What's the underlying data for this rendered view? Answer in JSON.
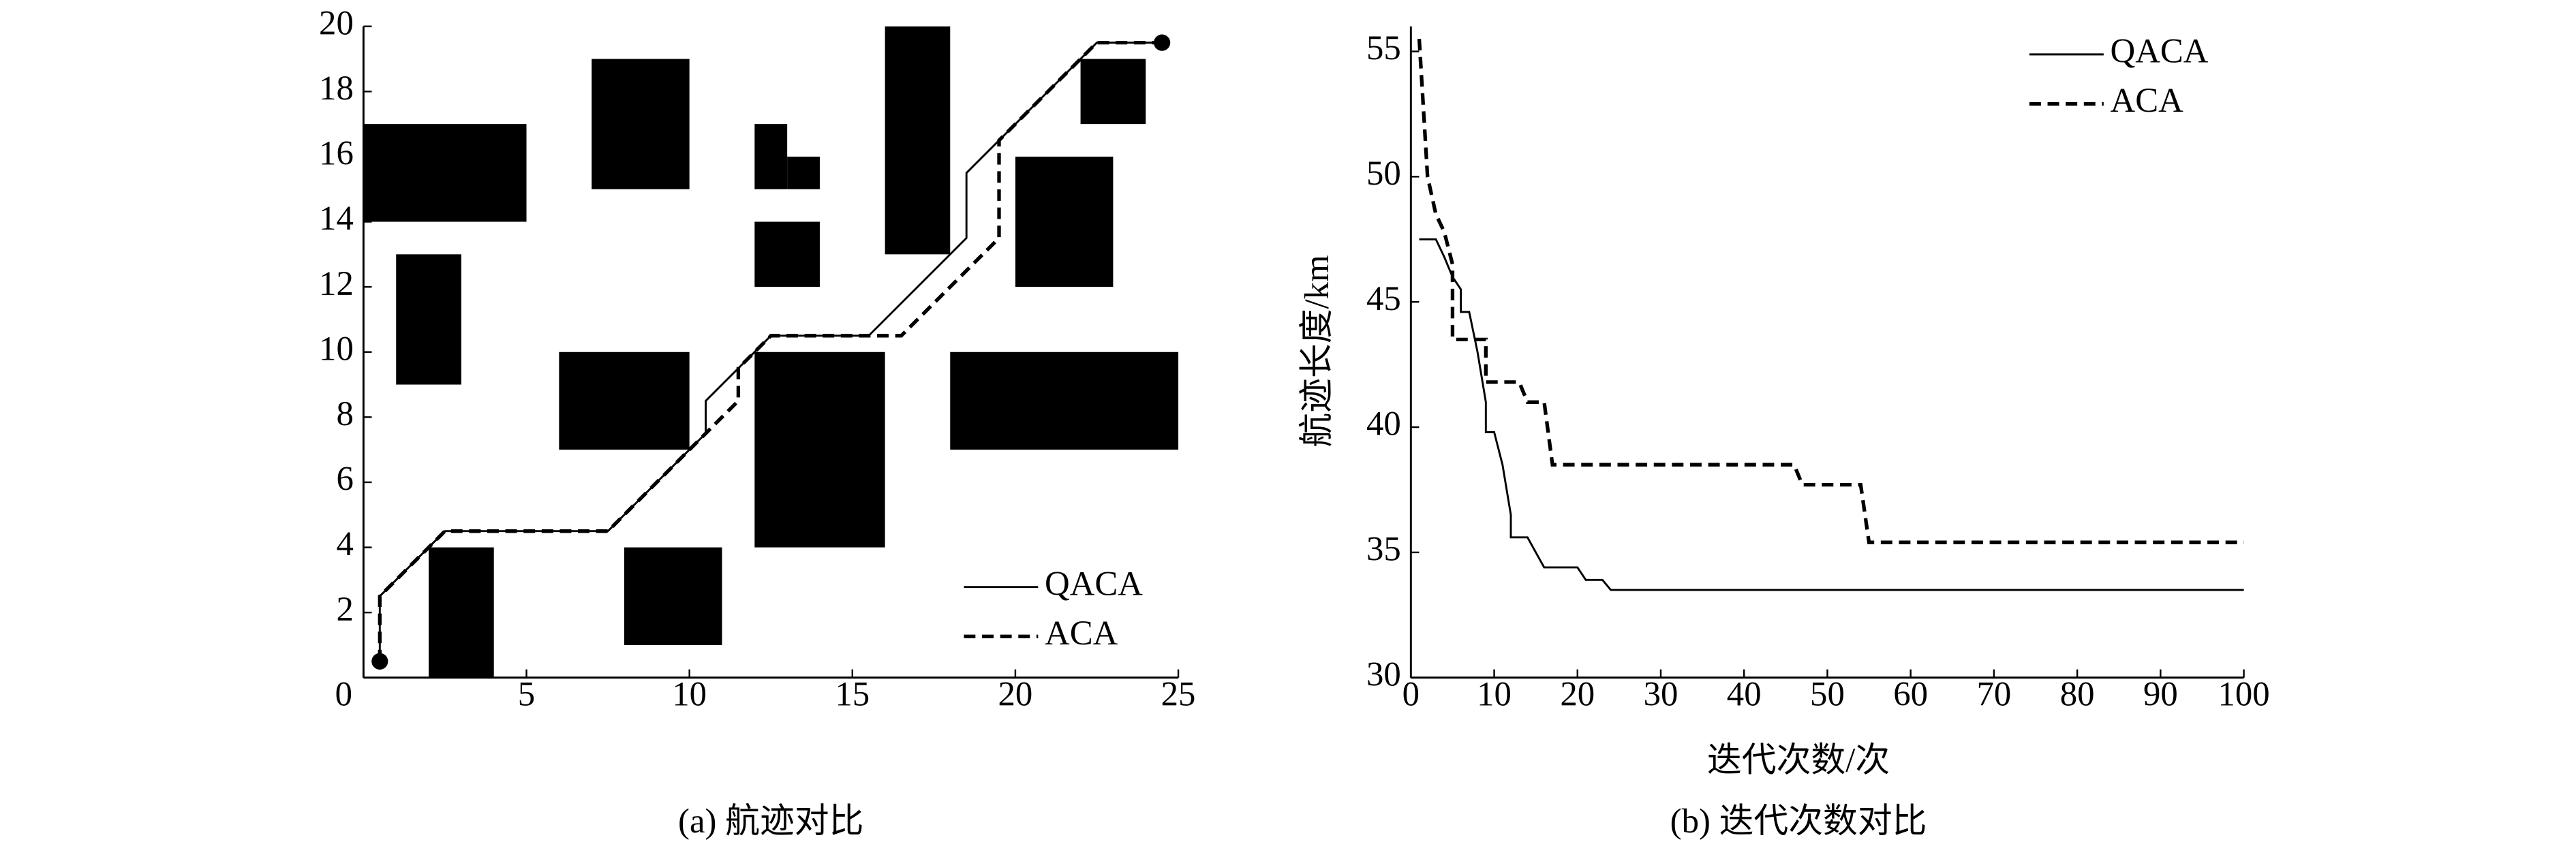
{
  "chart_data": [
    {
      "type": "line",
      "caption": "(a) 航迹对比",
      "xlim": [
        0,
        25
      ],
      "ylim": [
        0,
        20
      ],
      "xticks": [
        0,
        5,
        10,
        15,
        20,
        25
      ],
      "yticks": [
        2,
        4,
        6,
        8,
        10,
        12,
        14,
        16,
        18,
        20
      ],
      "legend": "lower right",
      "endpoint_markers": true,
      "obstacles": [
        [
          0,
          14,
          5,
          17
        ],
        [
          7,
          15,
          10,
          19
        ],
        [
          1,
          9,
          3,
          13
        ],
        [
          2,
          0,
          4,
          4
        ],
        [
          6,
          7,
          10,
          10
        ],
        [
          8,
          1,
          11,
          4
        ],
        [
          12,
          12,
          14,
          14
        ],
        [
          12,
          15,
          13,
          17
        ],
        [
          13,
          15,
          14,
          16
        ],
        [
          12,
          4,
          16,
          10
        ],
        [
          16,
          13,
          18,
          20
        ],
        [
          20,
          12,
          23,
          16
        ],
        [
          18,
          7,
          25,
          10
        ],
        [
          22,
          17,
          24,
          19
        ]
      ],
      "series": [
        {
          "name": "QACA",
          "color": "#000000",
          "linestyle": "solid",
          "x": [
            0.5,
            0.5,
            2.5,
            7.5,
            10.5,
            10.5,
            12.5,
            15.5,
            18.5,
            18.5,
            22.5,
            24.5
          ],
          "values": [
            0.5,
            2.5,
            4.5,
            4.5,
            7.5,
            8.5,
            10.5,
            10.5,
            13.5,
            15.5,
            19.5,
            19.5
          ]
        },
        {
          "name": "ACA",
          "color": "#000000",
          "linestyle": "dashed",
          "x": [
            0.5,
            0.5,
            2.5,
            7.5,
            11.5,
            11.5,
            12.5,
            16.5,
            19.5,
            19.5,
            22.5,
            24.5
          ],
          "values": [
            0.5,
            2.5,
            4.5,
            4.5,
            8.5,
            9.5,
            10.5,
            10.5,
            13.5,
            16.5,
            19.5,
            19.5
          ]
        }
      ]
    },
    {
      "type": "line",
      "caption": "(b) 迭代次数对比",
      "x_label": "迭代次数/次",
      "y_label": "航迹长度/km",
      "xlim": [
        0,
        100
      ],
      "ylim": [
        30,
        56
      ],
      "xticks": [
        0,
        10,
        20,
        30,
        40,
        50,
        60,
        70,
        80,
        90,
        100
      ],
      "yticks": [
        30,
        35,
        40,
        45,
        50,
        55
      ],
      "legend": "upper right",
      "endpoint_markers": false,
      "series": [
        {
          "name": "QACA",
          "color": "#000000",
          "linestyle": "solid",
          "x": [
            1,
            3,
            4,
            5,
            6,
            6,
            7,
            8,
            9,
            9,
            10,
            11,
            12,
            12,
            14,
            15,
            16,
            20,
            21,
            23,
            24,
            100
          ],
          "values": [
            47.5,
            47.5,
            46.8,
            46,
            45.5,
            44.6,
            44.6,
            43,
            41,
            39.8,
            39.8,
            38.5,
            36.5,
            35.6,
            35.6,
            35,
            34.4,
            34.4,
            33.9,
            33.9,
            33.5,
            33.5
          ]
        },
        {
          "name": "ACA",
          "color": "#000000",
          "linestyle": "dashed",
          "x": [
            1,
            2,
            3,
            4,
            5,
            5,
            9,
            9,
            13,
            14,
            16,
            17,
            46,
            47,
            54,
            55,
            100
          ],
          "values": [
            55.5,
            50,
            48.5,
            47.8,
            46.5,
            43.5,
            43.5,
            41.8,
            41.8,
            41,
            41,
            38.5,
            38.5,
            37.7,
            37.7,
            35.4,
            35.4
          ]
        }
      ]
    }
  ]
}
